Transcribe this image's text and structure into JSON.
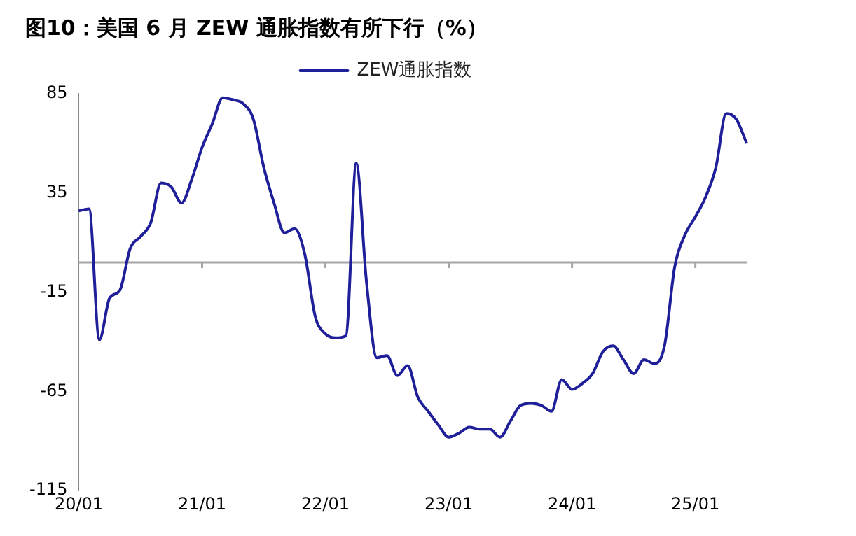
{
  "chart_data": {
    "type": "line",
    "title": "图10：美国 6 月 ZEW 通胀指数有所下行（%）",
    "categories": [
      "20/01",
      null,
      null,
      null,
      null,
      null,
      null,
      null,
      null,
      null,
      null,
      null,
      "21/01",
      null,
      null,
      null,
      null,
      null,
      null,
      null,
      null,
      null,
      null,
      null,
      "22/01",
      null,
      null,
      null,
      null,
      null,
      null,
      null,
      null,
      null,
      null,
      null,
      "23/01",
      null,
      null,
      null,
      null,
      null,
      null,
      null,
      null,
      null,
      null,
      null,
      "24/01",
      null,
      null,
      null,
      null,
      null,
      null,
      null,
      null,
      null,
      null,
      null,
      "25/01",
      null,
      null,
      null,
      null,
      null
    ],
    "series": [
      {
        "name": "ZEW通胀指数",
        "color": "#1f1f99",
        "values": [
          26,
          27,
          -39,
          -18,
          -14,
          7,
          13,
          20,
          40,
          38,
          30,
          42,
          58,
          70,
          83,
          82,
          80,
          72,
          48,
          30,
          15,
          17,
          4,
          -27,
          -36,
          -38,
          -37,
          50,
          -10,
          -48,
          -47,
          -57,
          -52,
          -68,
          -75,
          -82,
          -88,
          -86,
          -83,
          -84,
          -84,
          -88,
          -80,
          -72,
          -71,
          -72,
          -75,
          -59,
          -64,
          -61,
          -56,
          -45,
          -42,
          -49,
          -56,
          -49,
          -51,
          -42,
          -2,
          14,
          23,
          33,
          48,
          75,
          72,
          60
        ]
      }
    ],
    "ylim": [
      -115,
      85
    ],
    "yticks": [
      85,
      35,
      -15,
      -65,
      -115
    ],
    "grid": false,
    "legend": "top",
    "ref_lines": [
      {
        "axis": "y",
        "value": 0,
        "color": "#a6a6a6"
      }
    ]
  }
}
